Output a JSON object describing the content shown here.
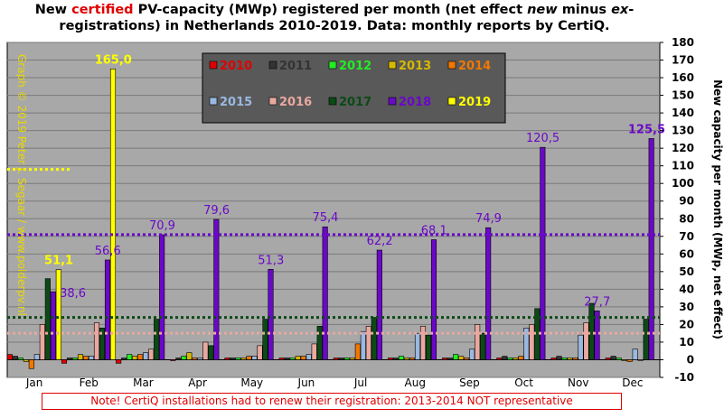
{
  "title": {
    "part1": "New ",
    "highlight": "certified",
    "part2": " PV-capacity (MWp) registered per month (net effect ",
    "new_word": "new",
    "part3": " minus ",
    "ex_word": "ex",
    "part4": "-",
    "line2": "registrations) in Netherlands 2010-2019. Data: monthly reports by CertiQ."
  },
  "watermark": "Graph © 2019 Peter J. Segaar / www.polderpv.nl",
  "note": "Note! CertiQ installations  had to renew their registration: 2013-2014  NOT representative",
  "colors": {
    "plot_bg": "#a8a8a8",
    "legend_bg": "#595959",
    "2010": "#e00000",
    "2011": "#333333",
    "2012": "#22ee22",
    "2013": "#d6b800",
    "2014": "#f07800",
    "2015": "#9ab8e0",
    "2016": "#e8a8a0",
    "2017": "#0c4a16",
    "2018": "#6a08c8",
    "2019": "#ffff00"
  },
  "chart_data": {
    "type": "bar",
    "title": "New certified PV-capacity (MWp) registered per month (net effect new minus ex-registrations) in Netherlands 2010-2019. Data: monthly reports by CertiQ.",
    "ylabel": "New capacity per month (MWp, net effect)",
    "xlabel": "",
    "ylim": [
      -10,
      180
    ],
    "yticks": [
      -10,
      0,
      10,
      20,
      30,
      40,
      50,
      60,
      70,
      80,
      90,
      100,
      110,
      120,
      130,
      140,
      150,
      160,
      170,
      180
    ],
    "grid": true,
    "legend_position": "top-left",
    "categories": [
      "Jan",
      "Feb",
      "Mar",
      "Apr",
      "May",
      "Jun",
      "Jul",
      "Aug",
      "Sep",
      "Oct",
      "Nov",
      "Dec"
    ],
    "series": [
      {
        "name": "2010",
        "values": [
          3,
          -2,
          -2,
          0,
          1,
          1,
          1,
          1,
          1,
          1,
          1,
          1
        ]
      },
      {
        "name": "2011",
        "values": [
          2,
          1,
          1,
          1,
          1,
          1,
          1,
          1,
          1,
          2,
          2,
          2
        ]
      },
      {
        "name": "2012",
        "values": [
          1,
          1,
          3,
          2,
          1,
          1,
          1,
          2,
          3,
          1,
          1,
          1
        ]
      },
      {
        "name": "2013",
        "values": [
          -1,
          3,
          2,
          4,
          1,
          2,
          1,
          1,
          2,
          1,
          1,
          0
        ]
      },
      {
        "name": "2014",
        "values": [
          -5,
          2,
          3,
          1,
          2,
          2,
          9,
          1,
          1,
          2,
          1,
          -1
        ]
      },
      {
        "name": "2015",
        "values": [
          3,
          2,
          4,
          1,
          2,
          3,
          16,
          15,
          6,
          18,
          14,
          6
        ]
      },
      {
        "name": "2016",
        "values": [
          20,
          21,
          6,
          10,
          8,
          9,
          19,
          19,
          20,
          20,
          21,
          0
        ]
      },
      {
        "name": "2017",
        "values": [
          46,
          18,
          23,
          8,
          23,
          19,
          24,
          14,
          15,
          29,
          32,
          23
        ]
      },
      {
        "name": "2018",
        "values": [
          38.6,
          56.6,
          70.9,
          79.6,
          51.3,
          75.4,
          62.2,
          68.1,
          74.9,
          120.5,
          27.7,
          125.5
        ]
      },
      {
        "name": "2019",
        "values": [
          51.1,
          165.0,
          null,
          null,
          null,
          null,
          null,
          null,
          null,
          null,
          null,
          null
        ]
      }
    ],
    "reference_lines": [
      {
        "series": "2019",
        "value": 108,
        "style": "dotted",
        "span": "Jan-Feb"
      },
      {
        "series": "2018",
        "value": 71,
        "style": "dotted",
        "span": "full"
      },
      {
        "series": "2017",
        "value": 24,
        "style": "dotted",
        "span": "full"
      },
      {
        "series": "2016",
        "value": 15,
        "style": "dotted",
        "span": "full"
      }
    ],
    "data_labels": [
      {
        "text": "165,0",
        "month": "Feb",
        "series": "2019"
      },
      {
        "text": "51,1",
        "month": "Jan",
        "series": "2019"
      },
      {
        "text": "38,6",
        "month": "Jan",
        "series": "2018"
      },
      {
        "text": "56,6",
        "month": "Feb",
        "series": "2018"
      },
      {
        "text": "70,9",
        "month": "Mar",
        "series": "2018"
      },
      {
        "text": "79,6",
        "month": "Apr",
        "series": "2018"
      },
      {
        "text": "51,3",
        "month": "May",
        "series": "2018"
      },
      {
        "text": "75,4",
        "month": "Jun",
        "series": "2018"
      },
      {
        "text": "62,2",
        "month": "Jul",
        "series": "2018"
      },
      {
        "text": "68,1",
        "month": "Aug",
        "series": "2018"
      },
      {
        "text": "74,9",
        "month": "Sep",
        "series": "2018"
      },
      {
        "text": "120,5",
        "month": "Oct",
        "series": "2018"
      },
      {
        "text": "27,7",
        "month": "Nov",
        "series": "2018"
      },
      {
        "text": "125,5",
        "month": "Dec",
        "series": "2018"
      }
    ]
  }
}
